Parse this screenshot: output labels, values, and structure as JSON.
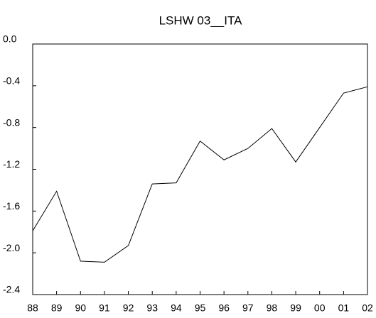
{
  "chart_data": {
    "type": "line",
    "title": "LSHW 03__ITA",
    "categories": [
      "88",
      "89",
      "90",
      "91",
      "92",
      "93",
      "94",
      "95",
      "96",
      "97",
      "98",
      "99",
      "00",
      "01",
      "02"
    ],
    "series": [
      {
        "name": null,
        "color": "#000000",
        "values": [
          -1.79,
          -1.41,
          -2.08,
          -2.09,
          -1.93,
          -1.34,
          -1.33,
          -0.93,
          -1.11,
          -1.0,
          -0.81,
          -1.13,
          -0.8,
          -0.47,
          -0.41
        ]
      }
    ],
    "ylim": [
      -2.4,
      0
    ],
    "yticks": [
      {
        "value": 0,
        "label": "0.0"
      },
      -0.4,
      -0.8,
      -1.2,
      -1.6,
      {
        "value": -2,
        "label": "-2.0"
      },
      -2.4
    ],
    "grid": false
  }
}
